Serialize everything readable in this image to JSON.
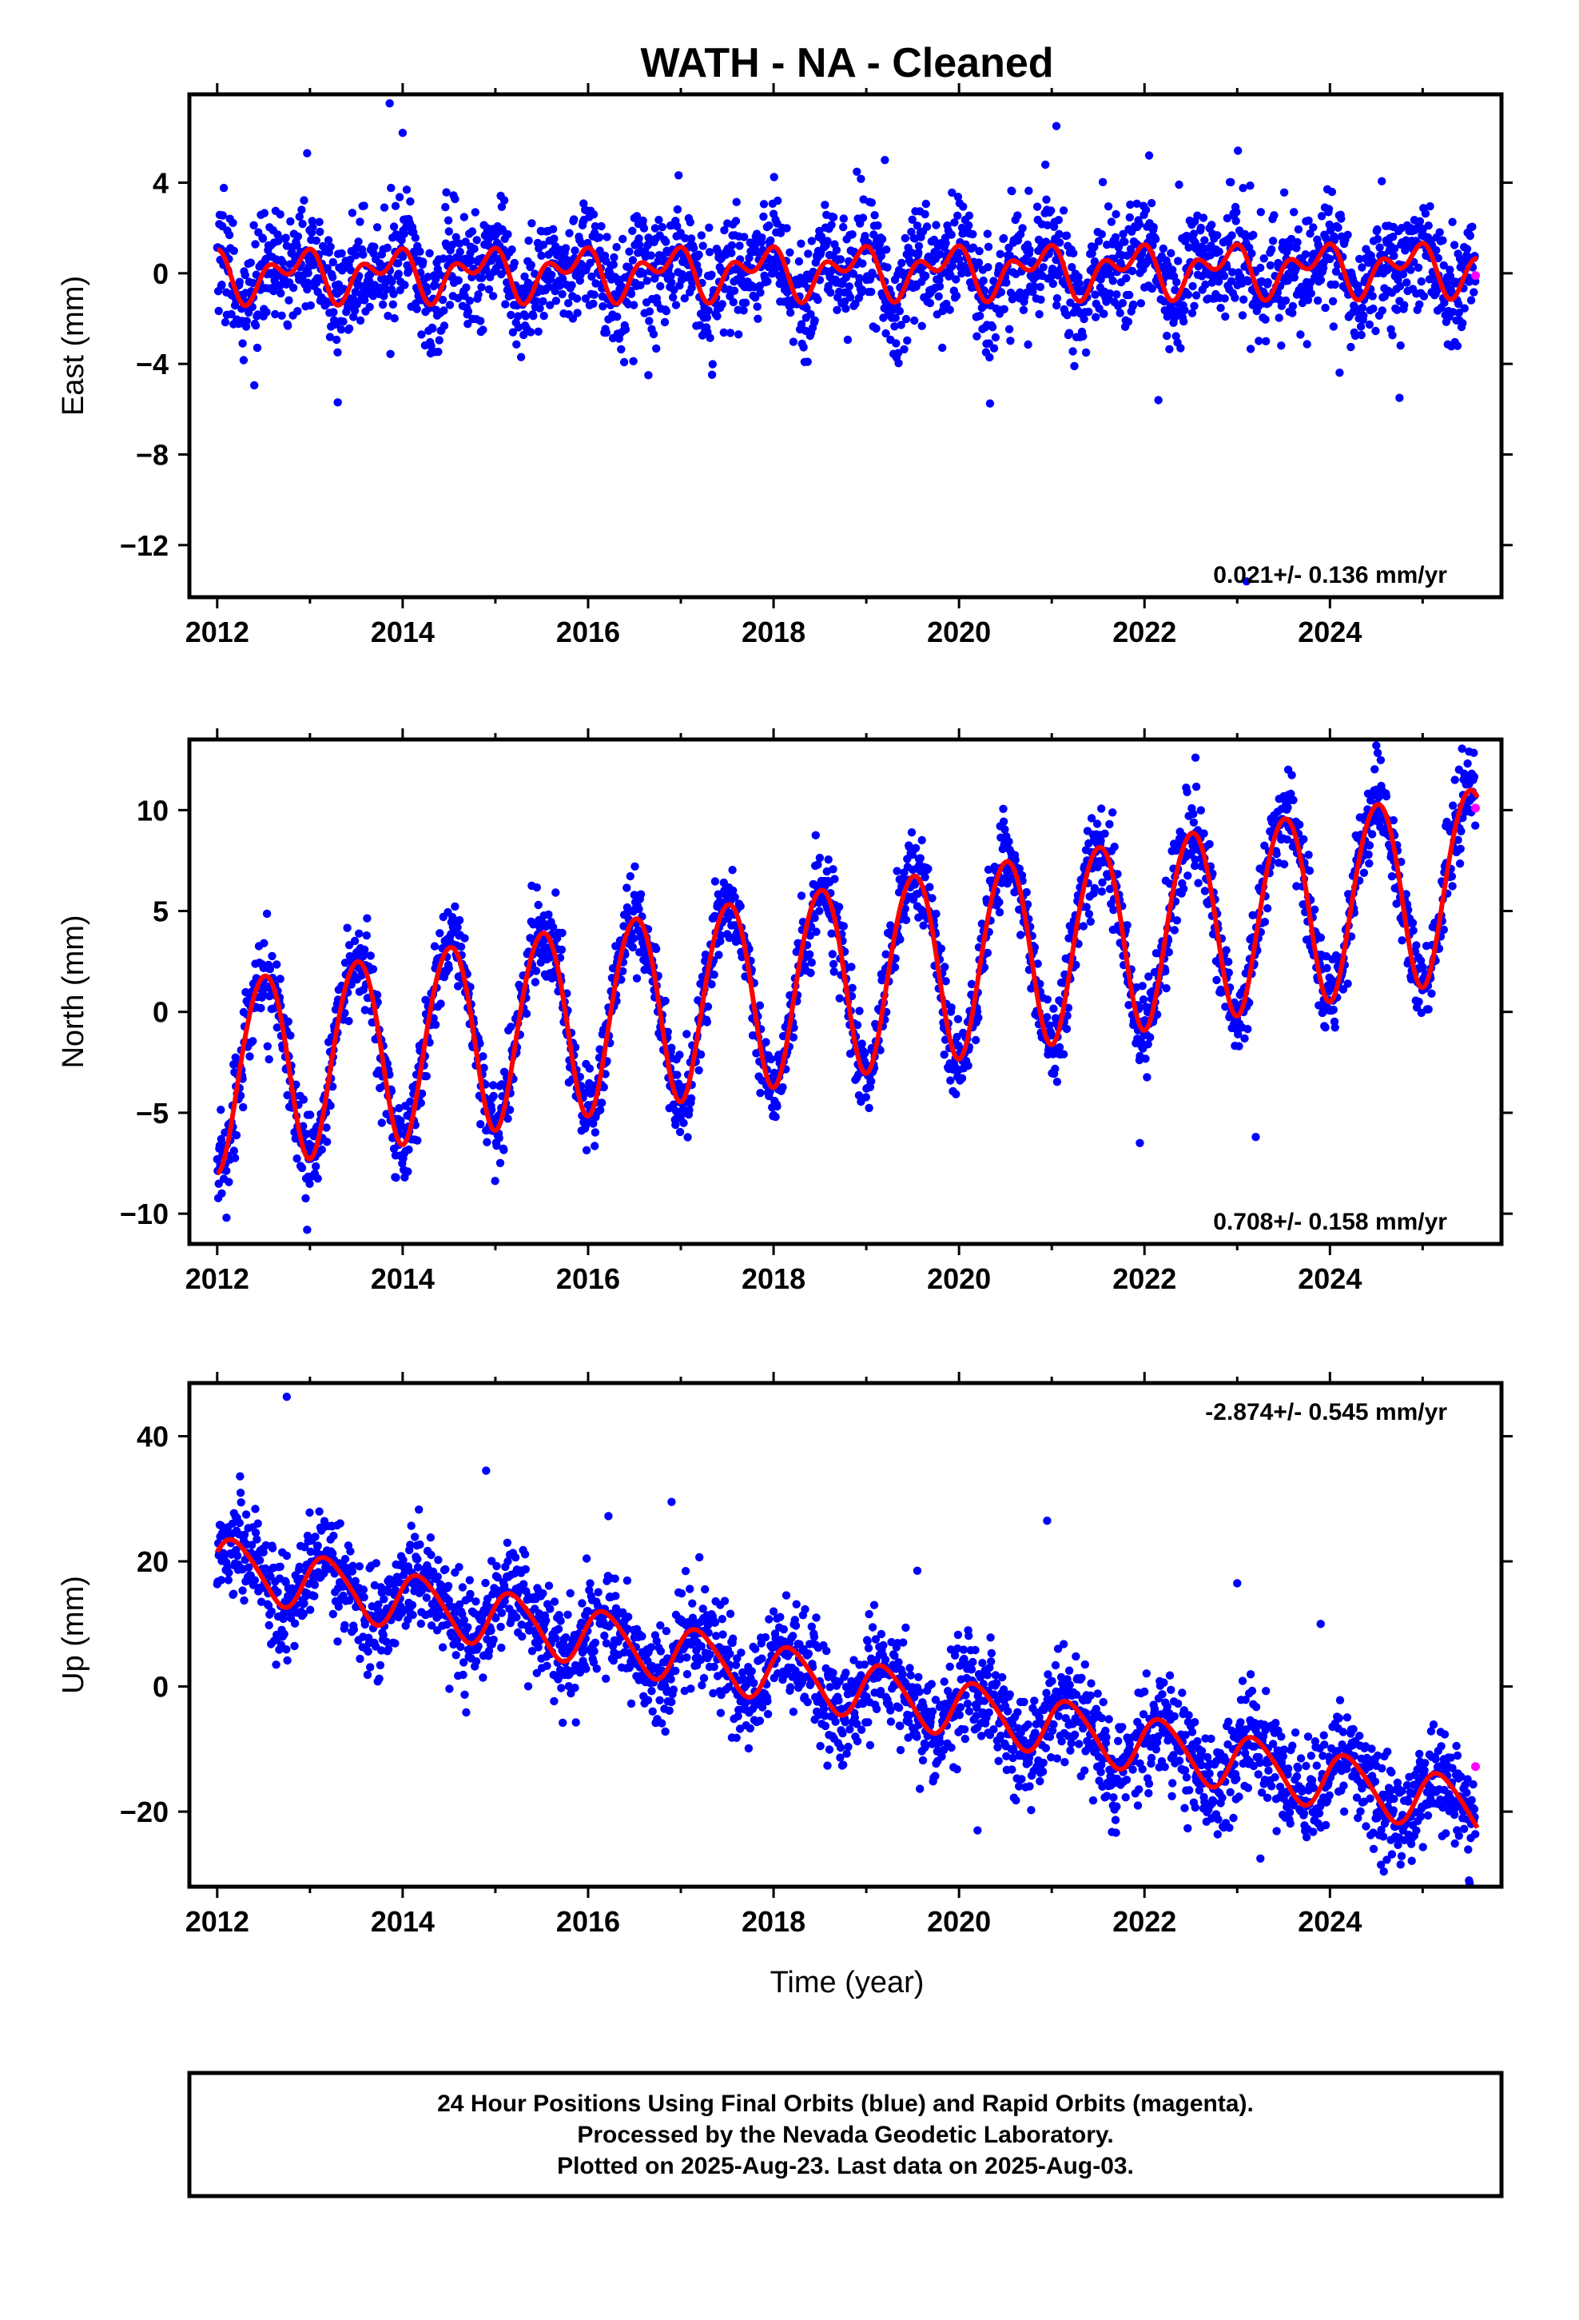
{
  "title": "WATH  - NA - Cleaned",
  "x_axis_title": "Time (year)",
  "caption": [
    "24 Hour Positions Using Final Orbits (blue) and Rapid Orbits (magenta).",
    "Processed by the Nevada Geodetic Laboratory.",
    "Plotted on 2025-Aug-23. Last data on 2025-Aug-03."
  ],
  "colors": {
    "final_orbits": "#0000ff",
    "rapid_orbits": "#ff00ff",
    "model_fit": "#ff0000",
    "frame": "#000000"
  },
  "chart_data": [
    {
      "type": "scatter",
      "name": "east",
      "ylabel": "East (mm)",
      "xlim": [
        2011.7,
        2025.85
      ],
      "ylim": [
        -14.3,
        7.9
      ],
      "x_ticks": [
        2012,
        2014,
        2016,
        2018,
        2020,
        2022,
        2024
      ],
      "y_ticks": [
        4,
        0,
        -4,
        -8,
        -12
      ],
      "y_tick_labels": [
        "4",
        "0",
        "−4",
        "−8",
        "−12"
      ],
      "rate_text": "0.021+/- 0.136 mm/yr",
      "rate_position": "bottom-right",
      "model": {
        "t0": 2012.0,
        "offset": -0.05,
        "rate": 0.021,
        "annual_sin": -0.6,
        "annual_cos": 0.5,
        "semiannual_sin": 0.3,
        "semiannual_cos": 0.6
      },
      "scatter_sd": 1.2,
      "x": [
        2012.0,
        2013.0,
        2014.0,
        2015.0,
        2016.0,
        2017.0,
        2018.0,
        2019.0,
        2020.0,
        2021.0,
        2022.0,
        2023.0,
        2024.0,
        2025.0,
        2025.59
      ],
      "y": [
        0.9,
        1.0,
        0.9,
        1.1,
        1.0,
        0.9,
        1.0,
        1.0,
        1.1,
        1.2,
        1.0,
        1.0,
        1.1,
        1.1,
        -0.1
      ],
      "outliers": [
        [
          2013.86,
          7.5
        ],
        [
          2014.0,
          6.2
        ],
        [
          2012.97,
          5.3
        ],
        [
          2021.05,
          6.5
        ],
        [
          2019.2,
          5.0
        ],
        [
          2022.05,
          5.2
        ],
        [
          2013.3,
          -5.7
        ],
        [
          2022.15,
          -5.6
        ],
        [
          2023.1,
          -13.6
        ],
        [
          2016.65,
          -4.5
        ],
        [
          2024.75,
          -5.5
        ]
      ],
      "rapid": [
        [
          2025.57,
          -0.1
        ]
      ]
    },
    {
      "type": "scatter",
      "name": "north",
      "ylabel": "North (mm)",
      "xlim": [
        2011.7,
        2025.85
      ],
      "ylim": [
        -11.5,
        13.5
      ],
      "x_ticks": [
        2012,
        2014,
        2016,
        2018,
        2020,
        2022,
        2024
      ],
      "y_ticks": [
        10,
        5,
        0,
        -5,
        -10
      ],
      "y_tick_labels": [
        "10",
        "5",
        "0",
        "−5",
        "−10"
      ],
      "rate_text": "0.708+/- 0.158 mm/yr",
      "rate_position": "bottom-right",
      "model": {
        "t0": 2012.0,
        "offset": -3.0,
        "rate": 0.708,
        "annual_sin": -0.15,
        "annual_cos": -4.7,
        "semiannual_sin": 0.1,
        "semiannual_cos": -0.3
      },
      "scatter_sd": 1.0,
      "x": [
        2012.0,
        2012.5,
        2012.95,
        2013.5,
        2013.95,
        2014.5,
        2014.95,
        2015.5,
        2016.0,
        2016.5,
        2016.95,
        2017.5,
        2017.95,
        2018.5,
        2018.95,
        2019.5,
        2019.95,
        2020.5,
        2020.95,
        2021.5,
        2021.95,
        2022.5,
        2022.95,
        2023.5,
        2023.95,
        2024.5,
        2024.95,
        2025.5
      ],
      "y": [
        -8.0,
        1.6,
        -7.7,
        2.4,
        -7.0,
        3.1,
        -6.3,
        3.8,
        -5.6,
        4.5,
        -4.9,
        5.2,
        -4.2,
        5.9,
        -3.5,
        6.6,
        -2.8,
        7.3,
        -2.1,
        8.0,
        -1.4,
        8.7,
        -0.7,
        9.4,
        0.0,
        10.1,
        0.7,
        10.8
      ],
      "outliers": [
        [
          2024.5,
          13.2
        ],
        [
          2022.55,
          12.6
        ],
        [
          2023.55,
          12.0
        ],
        [
          2025.5,
          12.9
        ],
        [
          2012.97,
          -10.8
        ],
        [
          2012.1,
          -10.2
        ],
        [
          2023.2,
          -6.2
        ],
        [
          2021.95,
          -6.5
        ]
      ],
      "rapid": [
        [
          2025.57,
          10.1
        ]
      ]
    },
    {
      "type": "scatter",
      "name": "up",
      "ylabel": "Up (mm)",
      "xlim": [
        2011.7,
        2025.85
      ],
      "ylim": [
        -32,
        48.5
      ],
      "x_ticks": [
        2012,
        2014,
        2016,
        2018,
        2020,
        2022,
        2024
      ],
      "y_ticks": [
        40,
        20,
        0,
        -20
      ],
      "y_tick_labels": [
        "40",
        "20",
        "0",
        "−20"
      ],
      "rate_text": "-2.874+/- 0.545 mm/yr",
      "rate_position": "top-right",
      "model": {
        "t0": 2012.0,
        "offset": 19.5,
        "rate": -2.874,
        "annual_sin": 4.2,
        "annual_cos": 1.5,
        "semiannual_sin": 0.3,
        "semiannual_cos": 0.5
      },
      "scatter_sd": 4.0,
      "x": [
        2012.0,
        2012.4,
        2012.8,
        2013.3,
        2013.75,
        2014.3,
        2014.75,
        2015.3,
        2015.75,
        2016.3,
        2016.75,
        2017.3,
        2017.75,
        2018.3,
        2018.75,
        2019.3,
        2019.75,
        2020.3,
        2020.75,
        2021.3,
        2021.75,
        2022.3,
        2022.75,
        2023.3,
        2023.75,
        2024.3,
        2024.75,
        2025.4,
        2025.59
      ],
      "y": [
        21.5,
        15.0,
        23.5,
        12.0,
        20.5,
        9.2,
        17.6,
        6.3,
        14.7,
        3.4,
        11.8,
        0.5,
        9.0,
        -2.3,
        6.1,
        -5.2,
        3.2,
        -8.1,
        0.3,
        -11.0,
        -2.6,
        -13.8,
        -5.5,
        -16.7,
        -8.3,
        -19.6,
        -11.2,
        -22.5,
        -15.5
      ],
      "outliers": [
        [
          2012.75,
          46.3
        ],
        [
          2014.9,
          34.5
        ],
        [
          2016.9,
          29.5
        ],
        [
          2020.95,
          26.5
        ],
        [
          2023.0,
          16.5
        ],
        [
          2019.55,
          18.5
        ],
        [
          2023.9,
          10.0
        ],
        [
          2025.5,
          -31.0
        ],
        [
          2024.55,
          -28.5
        ],
        [
          2023.25,
          -27.5
        ],
        [
          2020.2,
          -23.0
        ]
      ],
      "rapid": [
        [
          2025.57,
          -12.8
        ]
      ]
    }
  ]
}
